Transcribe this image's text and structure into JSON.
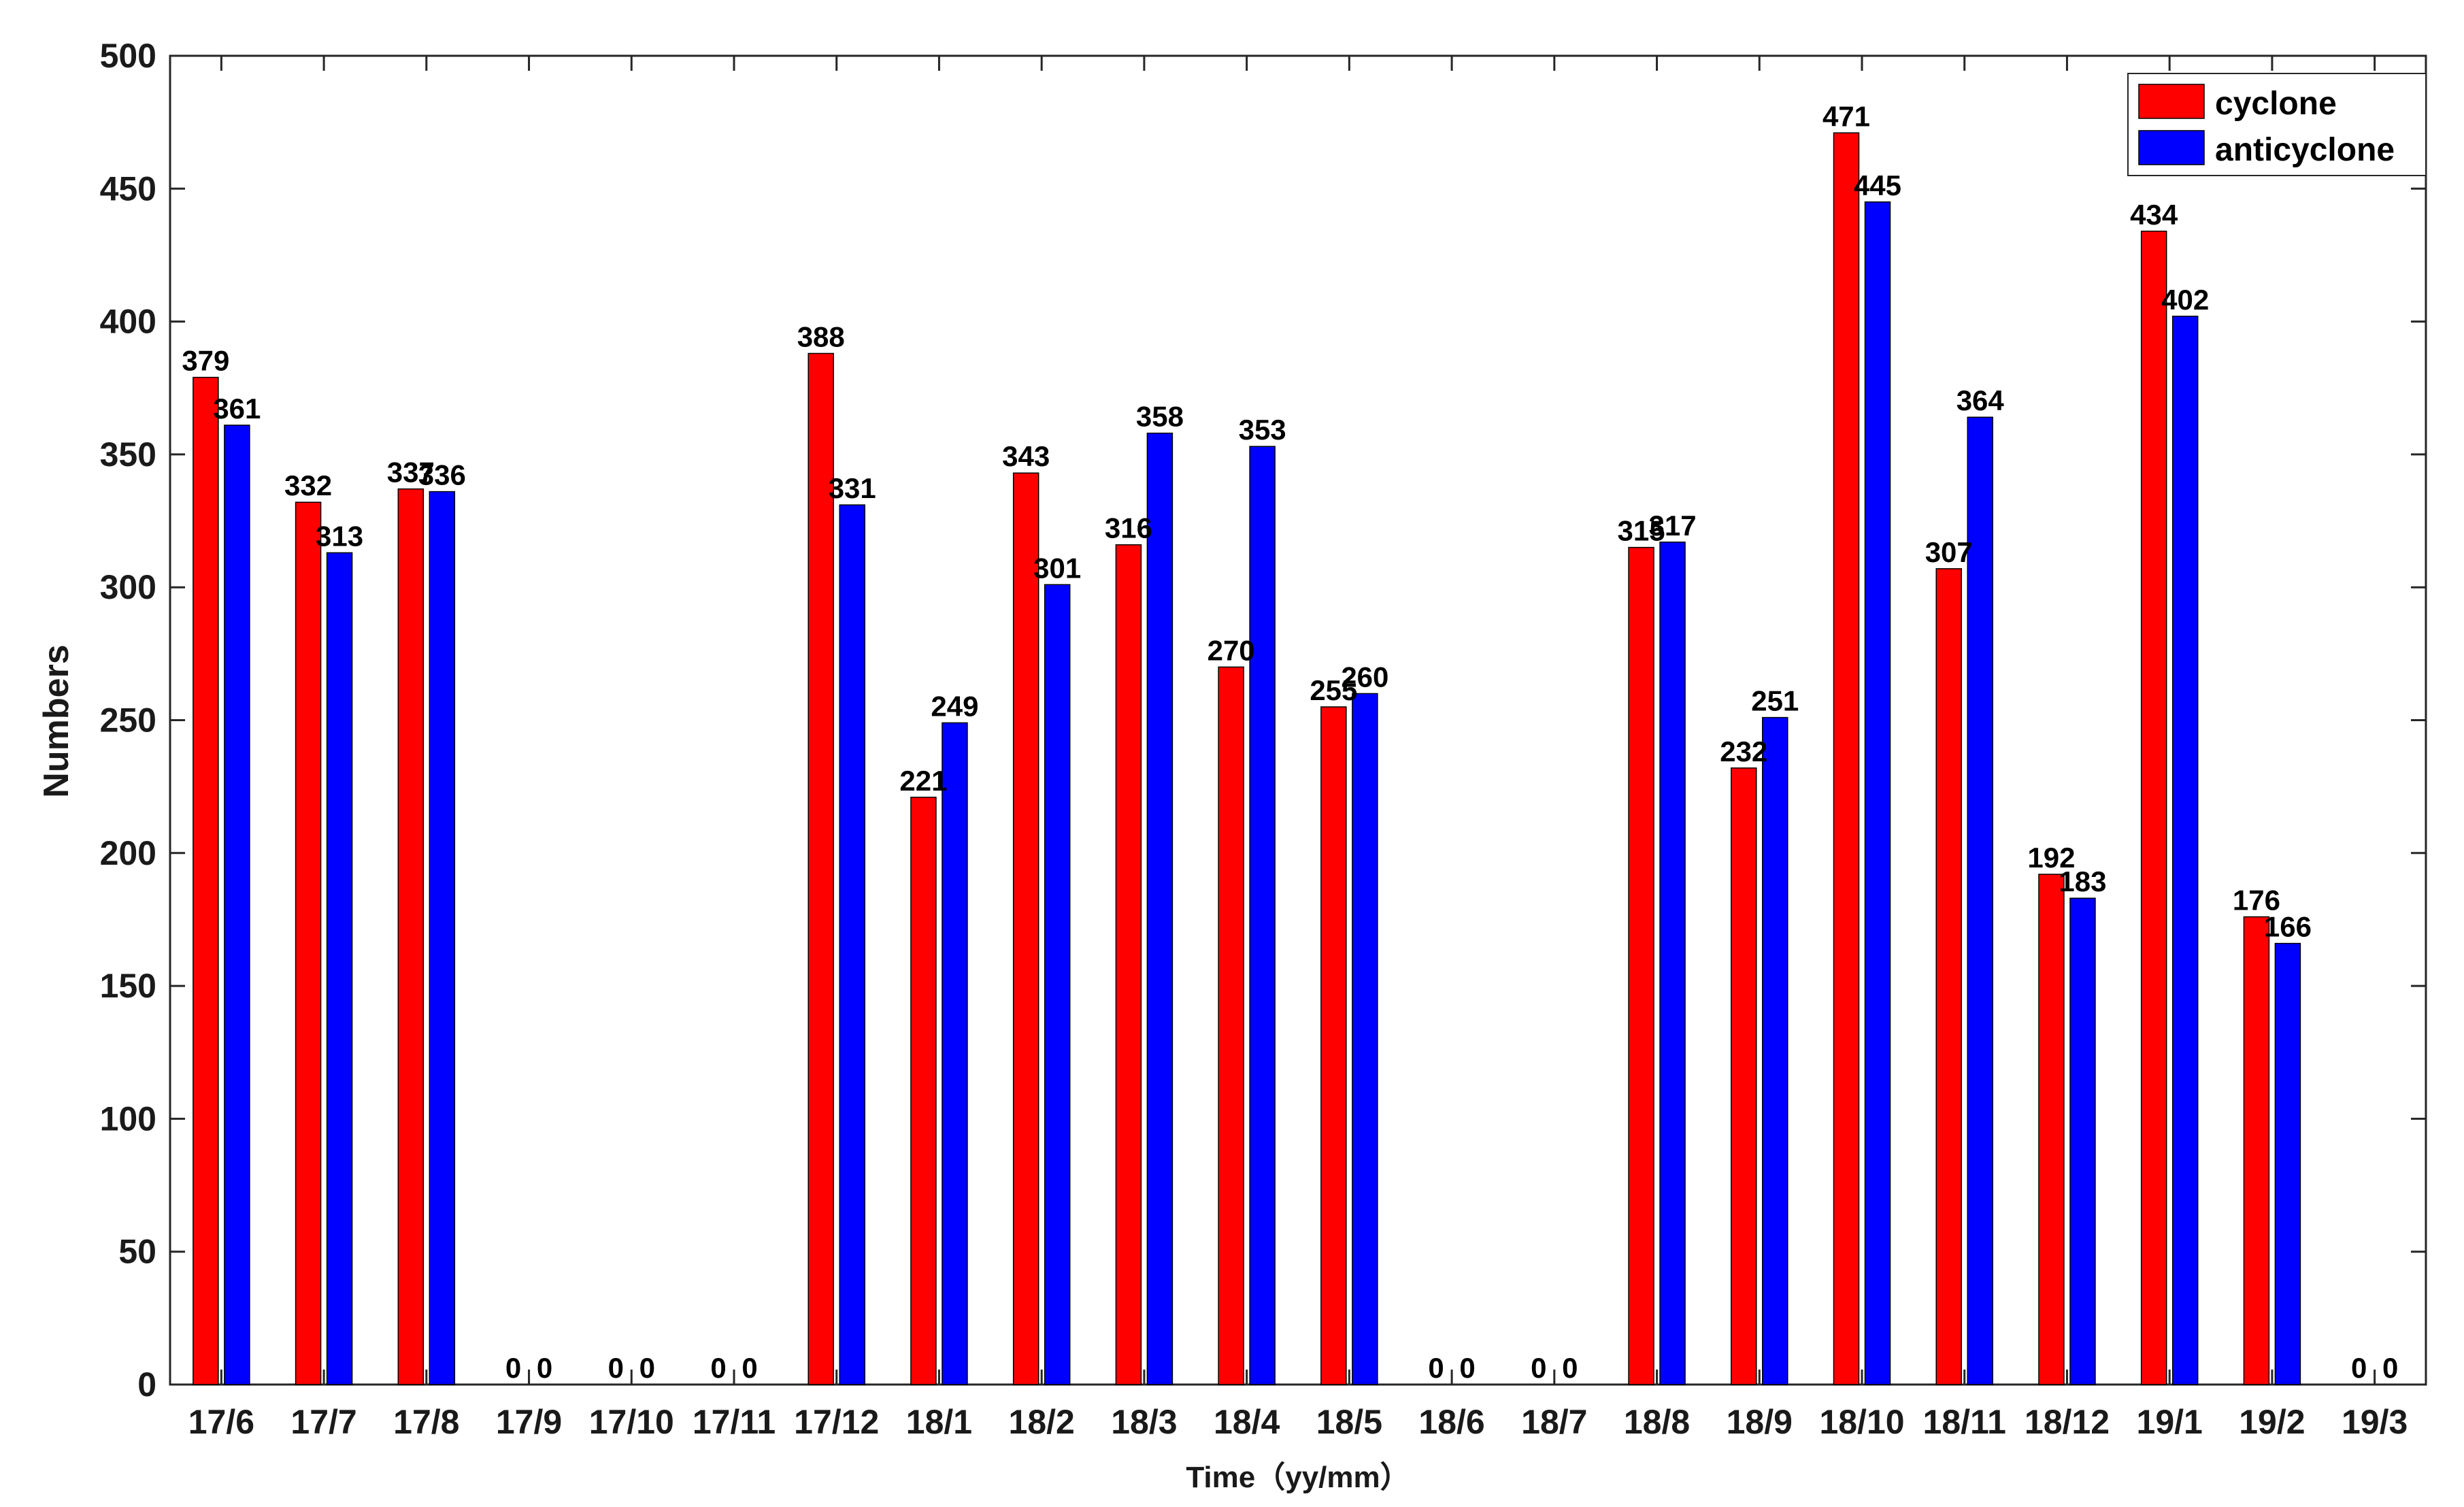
{
  "chart_data": {
    "type": "bar",
    "title": "",
    "xlabel": "Time（yy/mm）",
    "ylabel": "Numbers",
    "ylim": [
      0,
      500
    ],
    "yticks": [
      0,
      50,
      100,
      150,
      200,
      250,
      300,
      350,
      400,
      450,
      500
    ],
    "grid": false,
    "legend_position": "top-right",
    "categories": [
      "17/6",
      "17/7",
      "17/8",
      "17/9",
      "17/10",
      "17/11",
      "17/12",
      "18/1",
      "18/2",
      "18/3",
      "18/4",
      "18/5",
      "18/6",
      "18/7",
      "18/8",
      "18/9",
      "18/10",
      "18/11",
      "18/12",
      "19/1",
      "19/2",
      "19/3"
    ],
    "series": [
      {
        "name": "cyclone",
        "color": "#ff0000",
        "values": [
          379,
          332,
          337,
          0,
          0,
          0,
          388,
          221,
          343,
          316,
          270,
          255,
          0,
          0,
          315,
          232,
          471,
          307,
          192,
          434,
          176,
          0
        ]
      },
      {
        "name": "anticyclone",
        "color": "#0000ff",
        "values": [
          361,
          313,
          336,
          0,
          0,
          0,
          331,
          249,
          301,
          358,
          353,
          260,
          0,
          0,
          317,
          251,
          445,
          364,
          183,
          402,
          166,
          0
        ]
      }
    ]
  }
}
